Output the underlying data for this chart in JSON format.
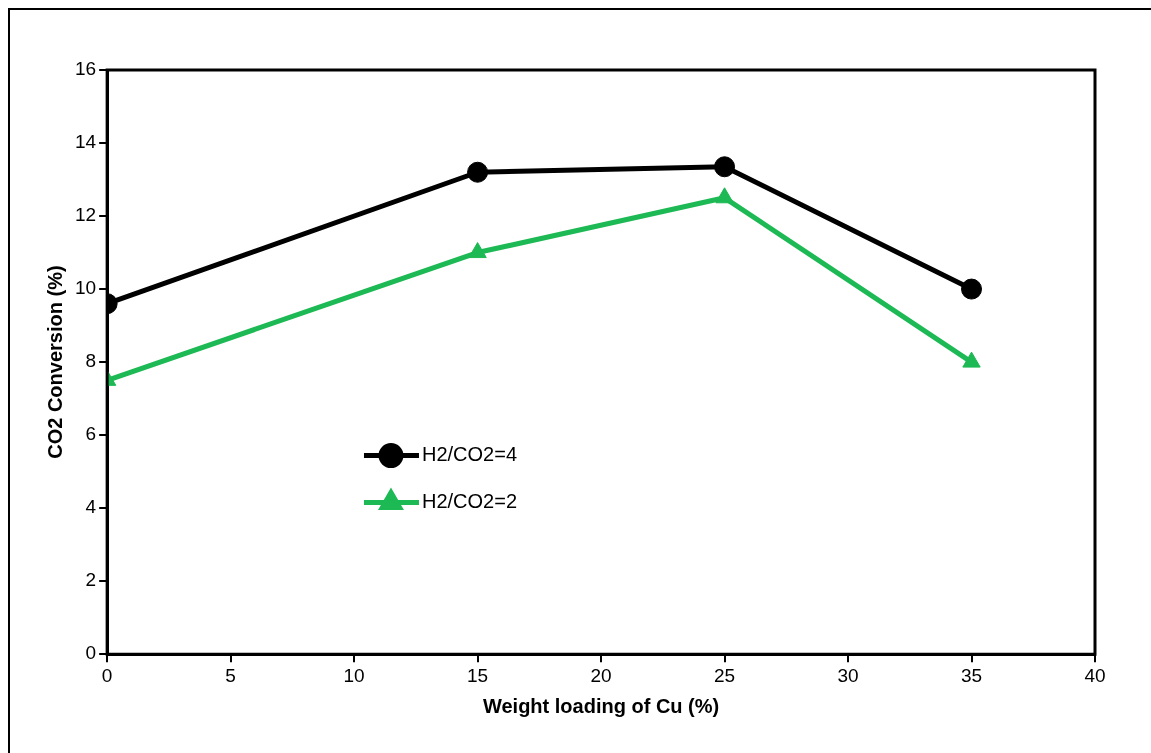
{
  "chart_data": {
    "type": "line",
    "xlabel": "Weight loading of Cu (%)",
    "ylabel": "CO2 Conversion (%)",
    "x": [
      0,
      15,
      25,
      35
    ],
    "series": [
      {
        "name": "H2/CO2=4",
        "color": "#000000",
        "marker": "circle",
        "values": [
          9.6,
          13.2,
          13.35,
          10
        ]
      },
      {
        "name": "H2/CO2=2",
        "color": "#1db954",
        "marker": "triangle",
        "values": [
          7.5,
          11,
          12.5,
          8
        ]
      }
    ],
    "xlim": [
      0,
      40
    ],
    "xticks": [
      0,
      5,
      10,
      15,
      20,
      25,
      30,
      35,
      40
    ],
    "ylim": [
      0,
      16
    ],
    "yticks": [
      0,
      2,
      4,
      6,
      8,
      10,
      12,
      14,
      16
    ],
    "grid": false,
    "legend": "center left"
  }
}
